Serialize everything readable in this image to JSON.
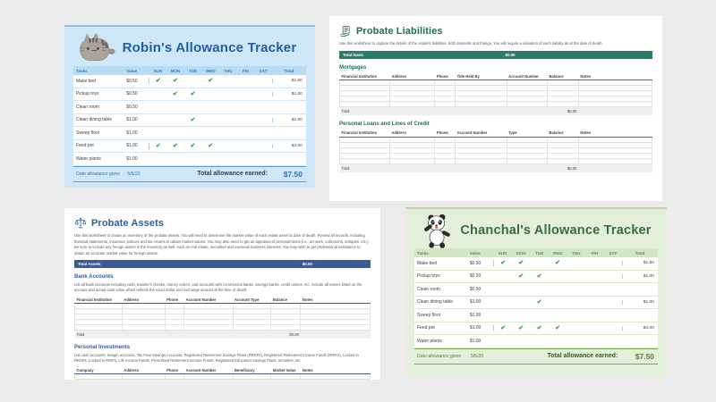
{
  "page": {
    "background": "#ebecec"
  },
  "day_columns": [
    "SUN",
    "MON",
    "TUE",
    "WED",
    "THU",
    "FRI",
    "SAT"
  ],
  "trackers": {
    "robin": {
      "title": "Robin's Allowance Tracker",
      "mascot": "pusheen-style-cat",
      "theme": {
        "bg": "#cfe8f9",
        "cardtop": "#8fc1e9",
        "headrow": "#b9dcf5",
        "title": "#1e5fa4",
        "headtxt": "#3a79b5",
        "check": "#3aa04c",
        "grid": "#a9cdea",
        "rowline": "#d3e6f5",
        "line": "#5b9bd5",
        "date": "#2e74b5",
        "totlabel": "#2a3f55",
        "money": "#2e74b5"
      },
      "columns": {
        "task": "Tasks",
        "value": "Value",
        "days": [
          "SUN",
          "MON",
          "TUE",
          "WED",
          "THU",
          "FRI",
          "SAT"
        ],
        "total": "Total"
      },
      "rows": [
        {
          "task": "Make bed",
          "value": "$0.50",
          "days": [
            "SUN",
            "MON",
            "WED"
          ],
          "total": "$1.50"
        },
        {
          "task": "Pickup toys",
          "value": "$0.50",
          "days": [
            "MON",
            "TUE"
          ],
          "total": "$1.00"
        },
        {
          "task": "Clean room",
          "value": "$0.50",
          "days": [],
          "total": ""
        },
        {
          "task": "Clean dining table",
          "value": "$1.00",
          "days": [
            "TUE"
          ],
          "total": "$1.00"
        },
        {
          "task": "Sweep floor",
          "value": "$1.00",
          "days": [],
          "total": ""
        },
        {
          "task": "Feed pet",
          "value": "$1.00",
          "days": [
            "SUN",
            "MON",
            "TUE",
            "WED"
          ],
          "total": "$4.00"
        },
        {
          "task": "Water plants",
          "value": "$1.00",
          "days": [],
          "total": ""
        }
      ],
      "footer": {
        "date_label": "Date allowance given",
        "date_value": "5/5/20",
        "total_label": "Total allowance earned:",
        "total_value": "$7.50"
      }
    },
    "chanchal": {
      "title": "Chanchal's Allowance Tracker",
      "mascot": "dancing-panda",
      "theme": {
        "bg": "#e4f0dc",
        "cardtop": "#b7d8a0",
        "headrow": "#d3e7c7",
        "title": "#35703a",
        "headtxt": "#5a9147",
        "check": "#3aa04c",
        "grid": "#b6d5a2",
        "rowline": "#d8e9cc",
        "line": "#70ad47",
        "date": "#538135",
        "totlabel": "#375623",
        "money": "#538135"
      },
      "columns": {
        "task": "Tasks",
        "value": "Value",
        "days": [
          "SUN",
          "MON",
          "TUE",
          "WED",
          "THU",
          "FRI",
          "SAT"
        ],
        "total": "Total"
      },
      "rows": [
        {
          "task": "Make bed",
          "value": "$0.50",
          "days": [
            "SUN",
            "MON",
            "WED"
          ],
          "total": "$1.50"
        },
        {
          "task": "Pickup toys",
          "value": "$0.50",
          "days": [
            "MON",
            "TUE"
          ],
          "total": "$1.00"
        },
        {
          "task": "Clean room",
          "value": "$0.50",
          "days": [],
          "total": ""
        },
        {
          "task": "Clean dining table",
          "value": "$1.00",
          "days": [
            "TUE"
          ],
          "total": "$1.00"
        },
        {
          "task": "Sweep floor",
          "value": "$1.00",
          "days": [],
          "total": ""
        },
        {
          "task": "Feed pet",
          "value": "$1.00",
          "days": [
            "SUN",
            "MON",
            "TUE",
            "WED"
          ],
          "total": "$4.00"
        },
        {
          "task": "Water plants",
          "value": "$1.00",
          "days": [],
          "total": ""
        }
      ],
      "footer": {
        "date_label": "Date allowance given",
        "date_value": "5/5/20",
        "total_label": "Total allowance earned:",
        "total_value": "$7.50"
      }
    }
  },
  "probate": {
    "liabilities": {
      "title": "Probate Liabilities",
      "icon": "hand-holding-documents-icon",
      "theme": {
        "accent": "#287d6b",
        "title": "#1d6e5b"
      },
      "description": "Use this worksheet to capture the details of the estate's liabilities, both domestic and foreign. You will require a valuation of each liability as at the date of death.",
      "total_bar": {
        "label": "Total loans",
        "value": "$0.00"
      },
      "sections": [
        {
          "heading": "Mortgages",
          "columns": [
            "Financial Institution",
            "Address",
            "Phone",
            "Title Held By",
            "Account Number",
            "Balance",
            "Notes"
          ],
          "empty_rows": 5,
          "total_label": "Total",
          "total_value": "$0.00"
        },
        {
          "heading": "Personal Loans and Lines of Credit",
          "columns": [
            "Financial Institution",
            "Address",
            "Phone",
            "Account Number",
            "Type",
            "Balance",
            "Notes"
          ],
          "empty_rows": 5,
          "total_label": "Total",
          "total_value": "$0.00"
        }
      ]
    },
    "assets": {
      "title": "Probate Assets",
      "icon": "scales-of-justice-icon",
      "theme": {
        "accent": "#3a5b95",
        "title": "#2d5f9e"
      },
      "description": "Use this worksheet to create an inventory of the probate assets. You will need to determine the market value of each estate asset at date of death. Review all records, including financial statements, insurance policies and tax returns to obtain market values. You may also need to get an appraisal of personal items (i.e., art work, collections, antiques, etc.). Be sure to include any foreign assets in the inventory as well, such as real estate, securities and overseas business interests. You may wish to get professional assistance to obtain an accurate market value for foreign assets.",
      "total_bar": {
        "label": "Total Assets",
        "value": "$0.00"
      },
      "sections": [
        {
          "heading": "Bank Accounts",
          "description": "List all bank accounts including cash, traveler's checks, money orders, and accounts with commercial banks, savings banks, credit unions, etc. Include all names listed on the account and actual cash value which reflects the exact dollar and exchange amount at the time of death.",
          "columns": [
            "Financial Institution",
            "Address",
            "Phone",
            "Account Number",
            "Account Type",
            "Balance",
            "Notes"
          ],
          "empty_rows": 5,
          "total_label": "Total",
          "total_value": "$0.00"
        },
        {
          "heading": "Personal Investments",
          "description": "List cash accounts, margin accounts, Tax Free Savings Accounts, Registered Retirement Savings Plans (RRSPs), Registered Retirement Income Funds (RRIFs), Locked in RRSPs, Locked in RRIFs, Life Income Funds, Prescribed Retirement Income Funds, Registered Education Savings Plans, annuities, etc.",
          "columns": [
            "Company",
            "Address",
            "Phone",
            "Account Number",
            "Beneficiary",
            "Market Value",
            "Notes"
          ],
          "empty_rows": 1,
          "total_label": "",
          "total_value": ""
        }
      ]
    }
  }
}
